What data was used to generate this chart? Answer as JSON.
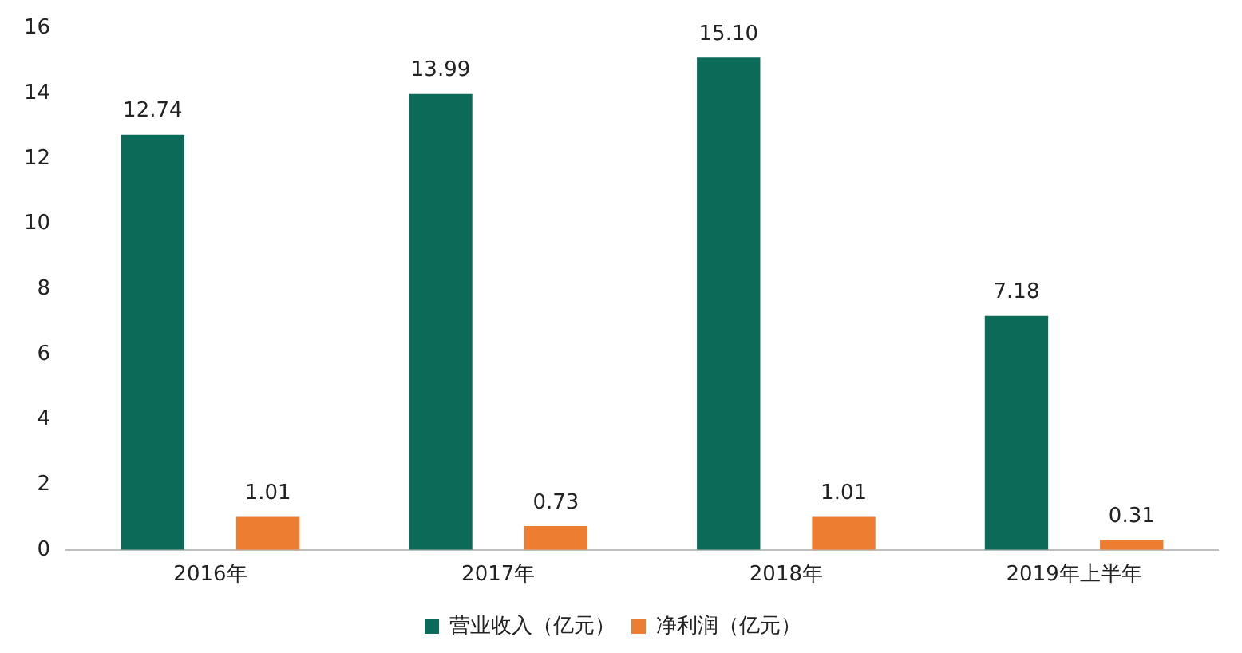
{
  "chart_data": {
    "type": "bar",
    "categories": [
      "2016年",
      "2017年",
      "2018年",
      "2019年上半年"
    ],
    "series": [
      {
        "name": "营业收入（亿元）",
        "color": "#0c6b58",
        "values": [
          12.74,
          13.99,
          15.1,
          7.18
        ],
        "value_labels": [
          "12.74",
          "13.99",
          "15.10",
          "7.18"
        ]
      },
      {
        "name": "净利润（亿元）",
        "color": "#ed7d31",
        "values": [
          1.01,
          0.73,
          1.01,
          0.31
        ],
        "value_labels": [
          "1.01",
          "0.73",
          "1.01",
          "0.31"
        ]
      }
    ],
    "ylim": [
      0,
      16
    ],
    "yticks": [
      0,
      2,
      4,
      6,
      8,
      10,
      12,
      14,
      16
    ],
    "grid": false,
    "legend": "bottom"
  }
}
